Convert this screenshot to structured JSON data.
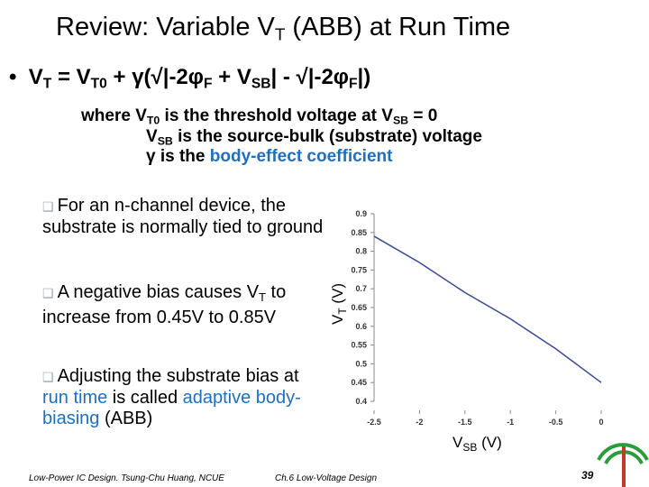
{
  "title": [
    "Review:  Variable V",
    "T",
    " (ABB) at Run Time"
  ],
  "formula": [
    "V",
    "T",
    " = V",
    "T0",
    " + γ(√|-2φ",
    "F",
    " + V",
    "SB",
    "| - √|-2φ",
    "F",
    "|)"
  ],
  "where": [
    [
      "where V",
      "T0",
      " is the threshold voltage at V",
      "SB",
      " = 0"
    ],
    [
      "V",
      "SB",
      " is the source-bulk (substrate) voltage"
    ],
    [
      "γ is the ",
      "body-effect coefficient"
    ]
  ],
  "bullets": [
    [
      "For an n-channel device, the substrate is normally tied to ground"
    ],
    [
      "A negative bias causes V",
      "T",
      " to increase from 0.45V to 0.85V"
    ],
    [
      "Adjusting the substrate bias at ",
      "run time",
      " is called ",
      "adaptive body-biasing",
      " (ABB)"
    ]
  ],
  "chart_data": {
    "type": "line",
    "x": [
      -2.5,
      -2,
      -1.5,
      -1,
      -0.5,
      0
    ],
    "values": [
      0.84,
      0.77,
      0.69,
      0.62,
      0.54,
      0.45
    ],
    "color": "#3b4a8c",
    "xlim": [
      -2.5,
      0
    ],
    "ylim": [
      0.4,
      0.9
    ],
    "xticks": [
      -2.5,
      -2,
      -1.5,
      -1,
      -0.5,
      0
    ],
    "yticks": [
      0.4,
      0.45,
      0.5,
      0.55,
      0.6,
      0.65,
      0.7,
      0.75,
      0.8,
      0.85,
      0.9
    ],
    "x_label": [
      "V",
      "SB",
      " (V)"
    ],
    "y_label": [
      "V",
      "T",
      " (V)"
    ]
  },
  "footer": {
    "left": "Low-Power IC Design. Tsung-Chu Huang, NCUE",
    "center": "Ch.6 Low-Voltage Design",
    "page": "39"
  }
}
